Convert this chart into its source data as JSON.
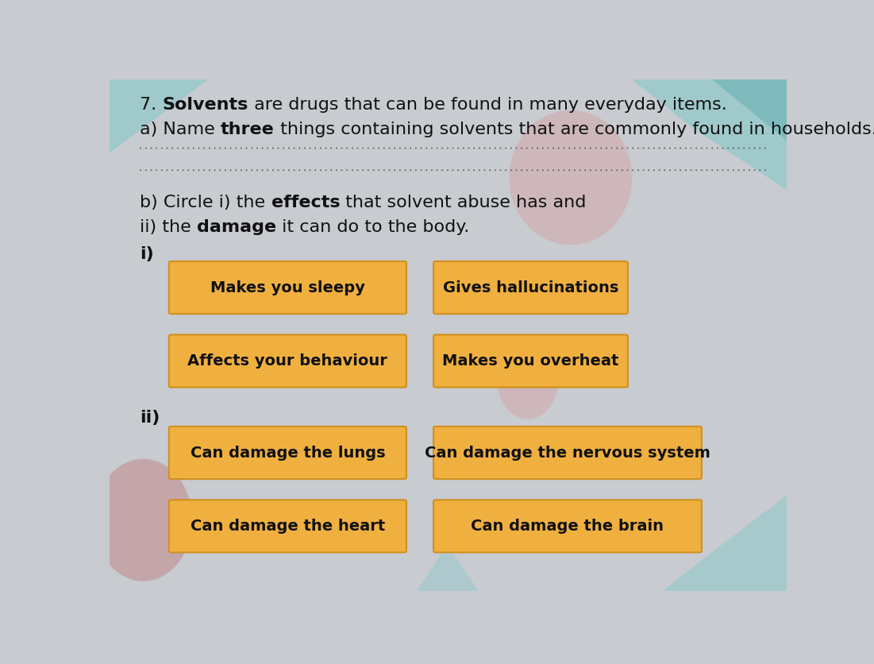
{
  "bg_color": "#C8CBD0",
  "bg_color_inner": "#D0D3D8",
  "text_color": "#111111",
  "dot_line_color": "#555555",
  "box_color": "#F0B040",
  "box_edge_color": "#D09020",
  "font_size_title": 16,
  "font_size_box": 14,
  "font_size_label": 16,
  "title_parts": [
    [
      "7. ",
      false
    ],
    [
      "Solvents",
      true
    ],
    [
      " are drugs that can be found in many everyday items.",
      false
    ]
  ],
  "part_a_parts": [
    [
      "a) Name ",
      false
    ],
    [
      "three",
      true
    ],
    [
      " things containing solvents that are commonly found in households.",
      false
    ]
  ],
  "part_b_line1_parts": [
    [
      "b) Circle i) the ",
      false
    ],
    [
      "effects",
      true
    ],
    [
      " that solvent abuse has and",
      false
    ]
  ],
  "part_b_line2_parts": [
    [
      "ii) the ",
      false
    ],
    [
      "damage",
      true
    ],
    [
      " it can do to the body.",
      false
    ]
  ],
  "section_i_label": "i)",
  "section_ii_label": "ii)",
  "boxes_i": [
    [
      "Makes you sleepy",
      "Gives hallucinations"
    ],
    [
      "Affects your behaviour",
      "Makes you overheat"
    ]
  ],
  "boxes_ii": [
    [
      "Can damage the lungs",
      "Can damage the nervous system"
    ],
    [
      "Can damage the heart",
      "Can damage the brain"
    ]
  ],
  "teal_color": "#7EC8C8",
  "teal_dark": "#5AACAC",
  "pink_color": "#D4A0A0",
  "pink_dark": "#C07070"
}
